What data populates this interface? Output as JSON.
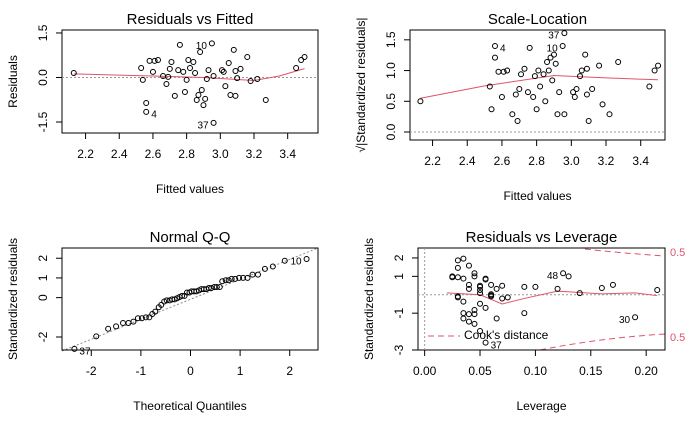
{
  "chart_data": [
    {
      "type": "scatter",
      "title": "Residuals vs Fitted",
      "x_label": "Fitted values",
      "y_label": "Residuals",
      "color": "#000000",
      "x": [
        2.13,
        2.53,
        2.54,
        2.56,
        2.56,
        2.58,
        2.6,
        2.61,
        2.63,
        2.66,
        2.68,
        2.69,
        2.7,
        2.71,
        2.73,
        2.75,
        2.76,
        2.78,
        2.79,
        2.8,
        2.81,
        2.82,
        2.84,
        2.85,
        2.86,
        2.87,
        2.88,
        2.89,
        2.9,
        2.91,
        2.92,
        2.93,
        2.95,
        2.96,
        2.96,
        3.01,
        3.02,
        3.03,
        3.05,
        3.06,
        3.08,
        3.09,
        3.09,
        3.1,
        3.12,
        3.16,
        3.18,
        3.22,
        3.27,
        3.45,
        3.48,
        3.5
      ],
      "values": [
        0.15,
        0.32,
        -0.08,
        -0.86,
        -1.16,
        0.56,
        0.19,
        0.56,
        0.59,
        0.05,
        -0.22,
        0.02,
        0.29,
        0.52,
        -0.62,
        0.25,
        1.1,
        0.19,
        -0.49,
        -0.08,
        0.59,
        0.32,
        0.52,
        0.15,
        -0.76,
        -0.59,
        0.86,
        -0.42,
        -0.93,
        -0.72,
        -0.05,
        0.25,
        1.15,
        -1.53,
        0.05,
        0.25,
        0.19,
        -0.29,
        0.49,
        -0.59,
        0.93,
        -0.62,
        0.22,
        -0.02,
        0.29,
        0.69,
        -0.12,
        -0.05,
        -0.76,
        0.32,
        0.59,
        0.69
      ],
      "point_labels": [
        null,
        null,
        null,
        null,
        "4",
        null,
        null,
        null,
        null,
        null,
        null,
        null,
        null,
        null,
        null,
        null,
        null,
        null,
        null,
        null,
        null,
        null,
        null,
        null,
        null,
        null,
        null,
        null,
        null,
        null,
        null,
        null,
        "10",
        "37",
        null,
        null,
        null,
        null,
        null,
        null,
        null,
        null,
        null,
        null,
        null,
        null,
        null,
        null,
        null,
        null,
        null,
        null
      ],
      "smooth": {
        "color": "#df536b",
        "x": [
          2.13,
          2.6,
          2.9,
          3.2,
          3.35,
          3.5
        ],
        "values": [
          0.12,
          0.05,
          0.0,
          -0.1,
          0.05,
          0.3
        ]
      },
      "xlim": [
        2.06,
        3.58
      ],
      "ylim": [
        -1.87,
        1.6
      ],
      "xticks": [
        2.2,
        2.4,
        2.6,
        2.8,
        {
          "value": 3,
          "label": "3.0"
        },
        3.2,
        3.4
      ],
      "yticks": [
        -1.5,
        {
          "value": 0,
          "label": "0.0"
        },
        1.5
      ]
    },
    {
      "type": "scatter",
      "title": "Scale-Location",
      "x_label": "Fitted values",
      "y_label": "√|Standardized residuals|",
      "color": "#000000",
      "x": [
        2.13,
        2.53,
        2.54,
        2.56,
        2.56,
        2.58,
        2.6,
        2.61,
        2.63,
        2.66,
        2.68,
        2.69,
        2.7,
        2.71,
        2.73,
        2.75,
        2.76,
        2.78,
        2.79,
        2.8,
        2.81,
        2.82,
        2.84,
        2.85,
        2.86,
        2.87,
        2.88,
        2.89,
        2.9,
        2.91,
        2.92,
        2.93,
        2.95,
        2.96,
        2.96,
        3.01,
        3.02,
        3.03,
        3.05,
        3.06,
        3.08,
        3.09,
        3.09,
        3.1,
        3.12,
        3.16,
        3.18,
        3.22,
        3.27,
        3.45,
        3.48,
        3.5
      ],
      "values": [
        0.5,
        0.74,
        0.37,
        1.21,
        1.4,
        0.98,
        0.57,
        0.98,
        1.0,
        0.29,
        0.61,
        0.18,
        0.7,
        0.94,
        1.03,
        0.65,
        1.37,
        0.57,
        0.91,
        0.37,
        1.0,
        0.74,
        0.94,
        0.5,
        1.14,
        1.0,
        1.21,
        0.84,
        1.26,
        1.11,
        0.29,
        0.65,
        1.4,
        1.61,
        0.29,
        0.65,
        0.57,
        0.7,
        0.91,
        1.0,
        1.26,
        1.03,
        0.61,
        0.18,
        0.7,
        1.08,
        0.45,
        0.29,
        1.14,
        0.74,
        1.0,
        1.08
      ],
      "point_labels": [
        null,
        null,
        null,
        null,
        "4",
        null,
        null,
        null,
        null,
        null,
        null,
        null,
        null,
        null,
        null,
        null,
        null,
        null,
        null,
        null,
        null,
        null,
        null,
        null,
        null,
        null,
        null,
        null,
        null,
        null,
        null,
        null,
        "10",
        "37",
        null,
        null,
        null,
        null,
        null,
        null,
        null,
        null,
        null,
        null,
        null,
        null,
        null,
        null,
        null,
        null,
        null,
        null
      ],
      "smooth": {
        "color": "#df536b",
        "x": [
          2.13,
          2.5,
          2.9,
          3.2,
          3.5
        ],
        "values": [
          0.55,
          0.75,
          0.92,
          0.88,
          0.85
        ]
      },
      "xlim": [
        2.07,
        3.54
      ],
      "ylim": [
        -0.13,
        1.66
      ],
      "xticks": [
        2.2,
        2.4,
        2.6,
        2.8,
        {
          "value": 3,
          "label": "3.0"
        },
        3.2,
        3.4
      ],
      "yticks": [
        {
          "value": 0,
          "label": "0.0"
        },
        0.5,
        {
          "value": 1,
          "label": "1.0"
        },
        1.5
      ]
    },
    {
      "type": "scatter",
      "title": "Normal Q-Q",
      "x_label": "Theoretical Quantiles",
      "y_label": "Standardized residuals",
      "color": "#000000",
      "x": [
        -2.34,
        -1.9,
        -1.66,
        -1.5,
        -1.36,
        -1.25,
        -1.15,
        -1.06,
        -0.98,
        -0.9,
        -0.83,
        -0.77,
        -0.71,
        -0.64,
        -0.59,
        -0.53,
        -0.48,
        -0.42,
        -0.37,
        -0.32,
        -0.27,
        -0.22,
        -0.17,
        -0.12,
        -0.07,
        -0.02,
        0.02,
        0.07,
        0.12,
        0.17,
        0.22,
        0.27,
        0.32,
        0.37,
        0.42,
        0.48,
        0.53,
        0.59,
        0.64,
        0.71,
        0.77,
        0.83,
        0.9,
        0.98,
        1.06,
        1.15,
        1.25,
        1.36,
        1.5,
        1.66,
        1.9,
        2.34
      ],
      "values": [
        -2.6,
        -1.97,
        -1.58,
        -1.46,
        -1.29,
        -1.29,
        -1.22,
        -1.05,
        -1.05,
        -1.0,
        -1.0,
        -0.83,
        -0.71,
        -0.49,
        -0.37,
        -0.2,
        -0.14,
        -0.14,
        -0.09,
        -0.09,
        -0.03,
        0.03,
        0.09,
        0.09,
        0.26,
        0.26,
        0.32,
        0.32,
        0.32,
        0.37,
        0.43,
        0.43,
        0.43,
        0.49,
        0.49,
        0.54,
        0.54,
        0.54,
        0.83,
        0.88,
        0.88,
        0.95,
        0.95,
        1.0,
        1.0,
        1.0,
        1.17,
        1.17,
        1.46,
        1.58,
        1.87,
        1.96
      ],
      "point_labels": [
        "37",
        null,
        null,
        null,
        null,
        null,
        null,
        null,
        null,
        null,
        null,
        null,
        null,
        null,
        null,
        null,
        null,
        null,
        null,
        null,
        null,
        null,
        null,
        null,
        null,
        null,
        null,
        null,
        null,
        null,
        null,
        null,
        null,
        null,
        null,
        null,
        null,
        null,
        null,
        null,
        null,
        null,
        null,
        null,
        null,
        null,
        null,
        null,
        null,
        null,
        null,
        "10"
      ],
      "xlim": [
        -2.59,
        2.57
      ],
      "ylim": [
        -2.66,
        2.52
      ],
      "xticks": [
        -2,
        -1,
        0,
        1,
        2
      ],
      "yticks": [
        -2,
        0,
        1,
        2
      ]
    },
    {
      "type": "scatter",
      "title": "Residuals vs Leverage",
      "x_label": "Leverage",
      "y_label": "Standardized residuals",
      "color": "#000000",
      "legend": "Cook's distance",
      "contour_labels": [
        "0.5",
        "0.5"
      ],
      "x": [
        0.21,
        0.06,
        0.03,
        0.04,
        0.05,
        0.03,
        0.04,
        0.025,
        0.045,
        0.05,
        0.035,
        0.06,
        0.07,
        0.055,
        0.04,
        0.05,
        0.03,
        0.065,
        0.045,
        0.075,
        0.025,
        0.04,
        0.035,
        0.05,
        0.065,
        0.035,
        0.03,
        0.055,
        0.045,
        0.19,
        0.06,
        0.09,
        0.035,
        0.055,
        0.14,
        0.1,
        0.12,
        0.05,
        0.055,
        0.09,
        0.04,
        0.045,
        0.16,
        0.06,
        0.05,
        0.045,
        0.07,
        0.03,
        0.035,
        0.17,
        0.13,
        0.125
      ],
      "values": [
        0.26,
        0.54,
        -0.14,
        -1.46,
        -1.97,
        0.95,
        0.32,
        0.95,
        1.0,
        0.09,
        -0.37,
        0.03,
        0.49,
        0.88,
        -1.05,
        0.43,
        1.87,
        0.32,
        -0.83,
        -0.14,
        1.0,
        0.54,
        0.88,
        0.26,
        -1.29,
        -1.0,
        1.46,
        -0.71,
        -1.58,
        -1.22,
        -0.09,
        0.43,
        1.96,
        -2.6,
        0.09,
        0.43,
        0.32,
        -0.49,
        0.83,
        -1.0,
        1.58,
        -1.05,
        0.37,
        -0.03,
        0.49,
        1.17,
        -0.2,
        -0.09,
        -1.29,
        0.54,
        1.0,
        1.17
      ],
      "point_labels": [
        null,
        null,
        null,
        null,
        null,
        null,
        null,
        null,
        null,
        null,
        null,
        null,
        null,
        null,
        null,
        null,
        null,
        null,
        null,
        null,
        null,
        null,
        null,
        null,
        null,
        null,
        null,
        null,
        null,
        "30",
        null,
        null,
        null,
        "37",
        null,
        null,
        null,
        null,
        null,
        null,
        null,
        null,
        null,
        null,
        null,
        null,
        null,
        null,
        null,
        null,
        null,
        "48"
      ],
      "smooth": {
        "color": "#df536b",
        "x": [
          0.02,
          0.05,
          0.07,
          0.09,
          0.12,
          0.16,
          0.19,
          0.21
        ],
        "values": [
          0.1,
          0.0,
          -0.5,
          -0.2,
          0.2,
          0.05,
          0.1,
          -0.05
        ]
      },
      "xlim": [
        -0.006,
        0.217
      ],
      "ylim": [
        -3.0,
        2.54
      ],
      "xticks": [
        {
          "value": 0,
          "label": "0.00"
        },
        0.05,
        {
          "value": 0.1,
          "label": "0.10"
        },
        0.15,
        {
          "value": 0.2,
          "label": "0.20"
        }
      ],
      "yticks": [
        -3,
        -1,
        1,
        2
      ]
    }
  ]
}
